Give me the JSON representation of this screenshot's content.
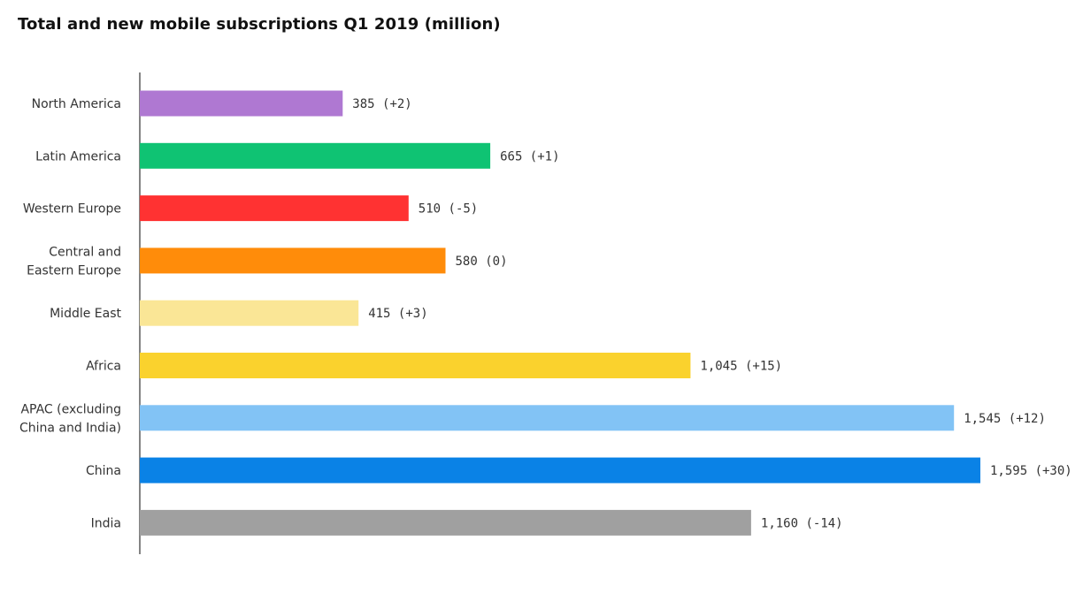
{
  "chart_data": {
    "type": "bar",
    "orientation": "horizontal",
    "title": "Total and new mobile subscriptions Q1 2019 (million)",
    "xlabel": "",
    "ylabel": "",
    "xlim": [
      0,
      1650
    ],
    "grid": false,
    "categories": [
      "North America",
      "Latin America",
      "Western Europe",
      "Central and Eastern Europe",
      "Middle East",
      "Africa",
      "APAC (excluding China and India)",
      "China",
      "India"
    ],
    "category_label_lines": [
      [
        "North America"
      ],
      [
        "Latin America"
      ],
      [
        "Western Europe"
      ],
      [
        "Central and",
        "Eastern Europe"
      ],
      [
        "Middle East"
      ],
      [
        "Africa"
      ],
      [
        "APAC (excluding",
        "China and India)"
      ],
      [
        "China"
      ],
      [
        "India"
      ]
    ],
    "values": [
      385,
      665,
      510,
      580,
      415,
      1045,
      1545,
      1595,
      1160
    ],
    "new_subscriptions": [
      2,
      1,
      -5,
      0,
      3,
      15,
      12,
      30,
      -14
    ],
    "data_labels": [
      "385 (+2)",
      "665 (+1)",
      "510 (-5)",
      "580 (0)",
      "415 (+3)",
      "1,045 (+15)",
      "1,545 (+12)",
      "1,595 (+30)",
      "1,160 (-14)"
    ],
    "colors": [
      "#af78d2",
      "#0fc373",
      "#ff3232",
      "#ff8c0a",
      "#fae696",
      "#fad22d",
      "#82c3f5",
      "#0a82e6",
      "#a0a0a0"
    ]
  }
}
